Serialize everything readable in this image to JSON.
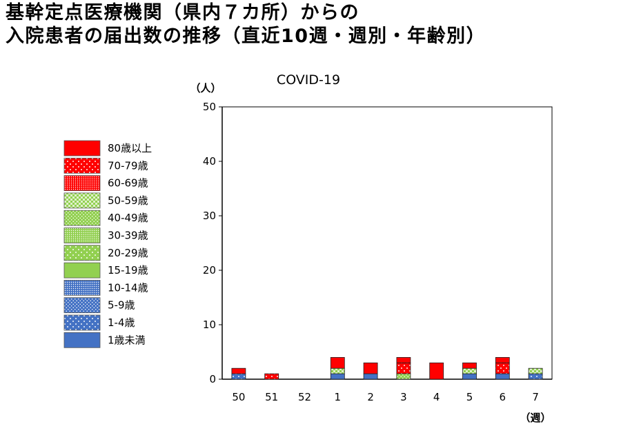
{
  "title": {
    "line1": "基幹定点医療機関（県内７カ所）からの",
    "line2": "入院患者の届出数の推移（直近10週・週別・年齢別）"
  },
  "chart_data": {
    "type": "bar",
    "stacked": true,
    "title": "COVID-19",
    "ylabel": "（人）",
    "xlabel": "（週）",
    "ylim": [
      0,
      50
    ],
    "yticks": [
      "0",
      "10",
      "20",
      "30",
      "40",
      "50"
    ],
    "categories": [
      "50",
      "51",
      "52",
      "1",
      "2",
      "3",
      "4",
      "5",
      "6",
      "7"
    ],
    "legend_position": "left",
    "grid": false,
    "series": [
      {
        "name": "1歳未満",
        "color": "#4472C4",
        "pattern": "solid",
        "values": [
          0,
          0,
          0,
          1,
          1,
          0,
          0,
          1,
          1,
          0
        ]
      },
      {
        "name": "1-4歳",
        "color": "#4472C4",
        "pattern": "dots-sparse",
        "values": [
          1,
          0,
          0,
          0,
          0,
          0,
          0,
          0,
          0,
          1
        ]
      },
      {
        "name": "5-9歳",
        "color": "#4472C4",
        "pattern": "dots-medium",
        "values": [
          0,
          0,
          0,
          0,
          0,
          0,
          0,
          0,
          0,
          0
        ]
      },
      {
        "name": "10-14歳",
        "color": "#4472C4",
        "pattern": "dots-dense",
        "values": [
          0,
          0,
          0,
          0,
          0,
          0,
          0,
          0,
          0,
          0
        ]
      },
      {
        "name": "15-19歳",
        "color": "#92D050",
        "pattern": "solid",
        "values": [
          0,
          0,
          0,
          0,
          0,
          0,
          0,
          0,
          0,
          0
        ]
      },
      {
        "name": "20-29歳",
        "color": "#92D050",
        "pattern": "dots-sparse",
        "values": [
          0,
          0,
          0,
          0,
          0,
          0,
          0,
          0,
          0,
          0
        ]
      },
      {
        "name": "30-39歳",
        "color": "#92D050",
        "pattern": "dots-dense",
        "values": [
          0,
          0,
          0,
          0,
          0,
          0,
          0,
          0,
          0,
          0
        ]
      },
      {
        "name": "40-49歳",
        "color": "#92D050",
        "pattern": "dots-medium",
        "values": [
          0,
          0,
          0,
          0,
          0,
          1,
          0,
          0,
          0,
          0
        ]
      },
      {
        "name": "50-59歳",
        "color": "#92D050",
        "pattern": "checker",
        "values": [
          0,
          0,
          0,
          1,
          0,
          0,
          0,
          1,
          0,
          1
        ]
      },
      {
        "name": "60-69歳",
        "color": "#FF0000",
        "pattern": "dots-dense",
        "values": [
          0,
          0,
          0,
          0,
          0,
          0,
          0,
          0,
          0,
          0
        ]
      },
      {
        "name": "70-79歳",
        "color": "#FF0000",
        "pattern": "dots-sparse",
        "values": [
          0,
          1,
          0,
          0,
          0,
          2,
          0,
          0,
          2,
          0
        ]
      },
      {
        "name": "80歳以上",
        "color": "#FF0000",
        "pattern": "solid",
        "values": [
          1,
          0,
          0,
          2,
          2,
          1,
          3,
          1,
          1,
          0
        ]
      }
    ]
  }
}
